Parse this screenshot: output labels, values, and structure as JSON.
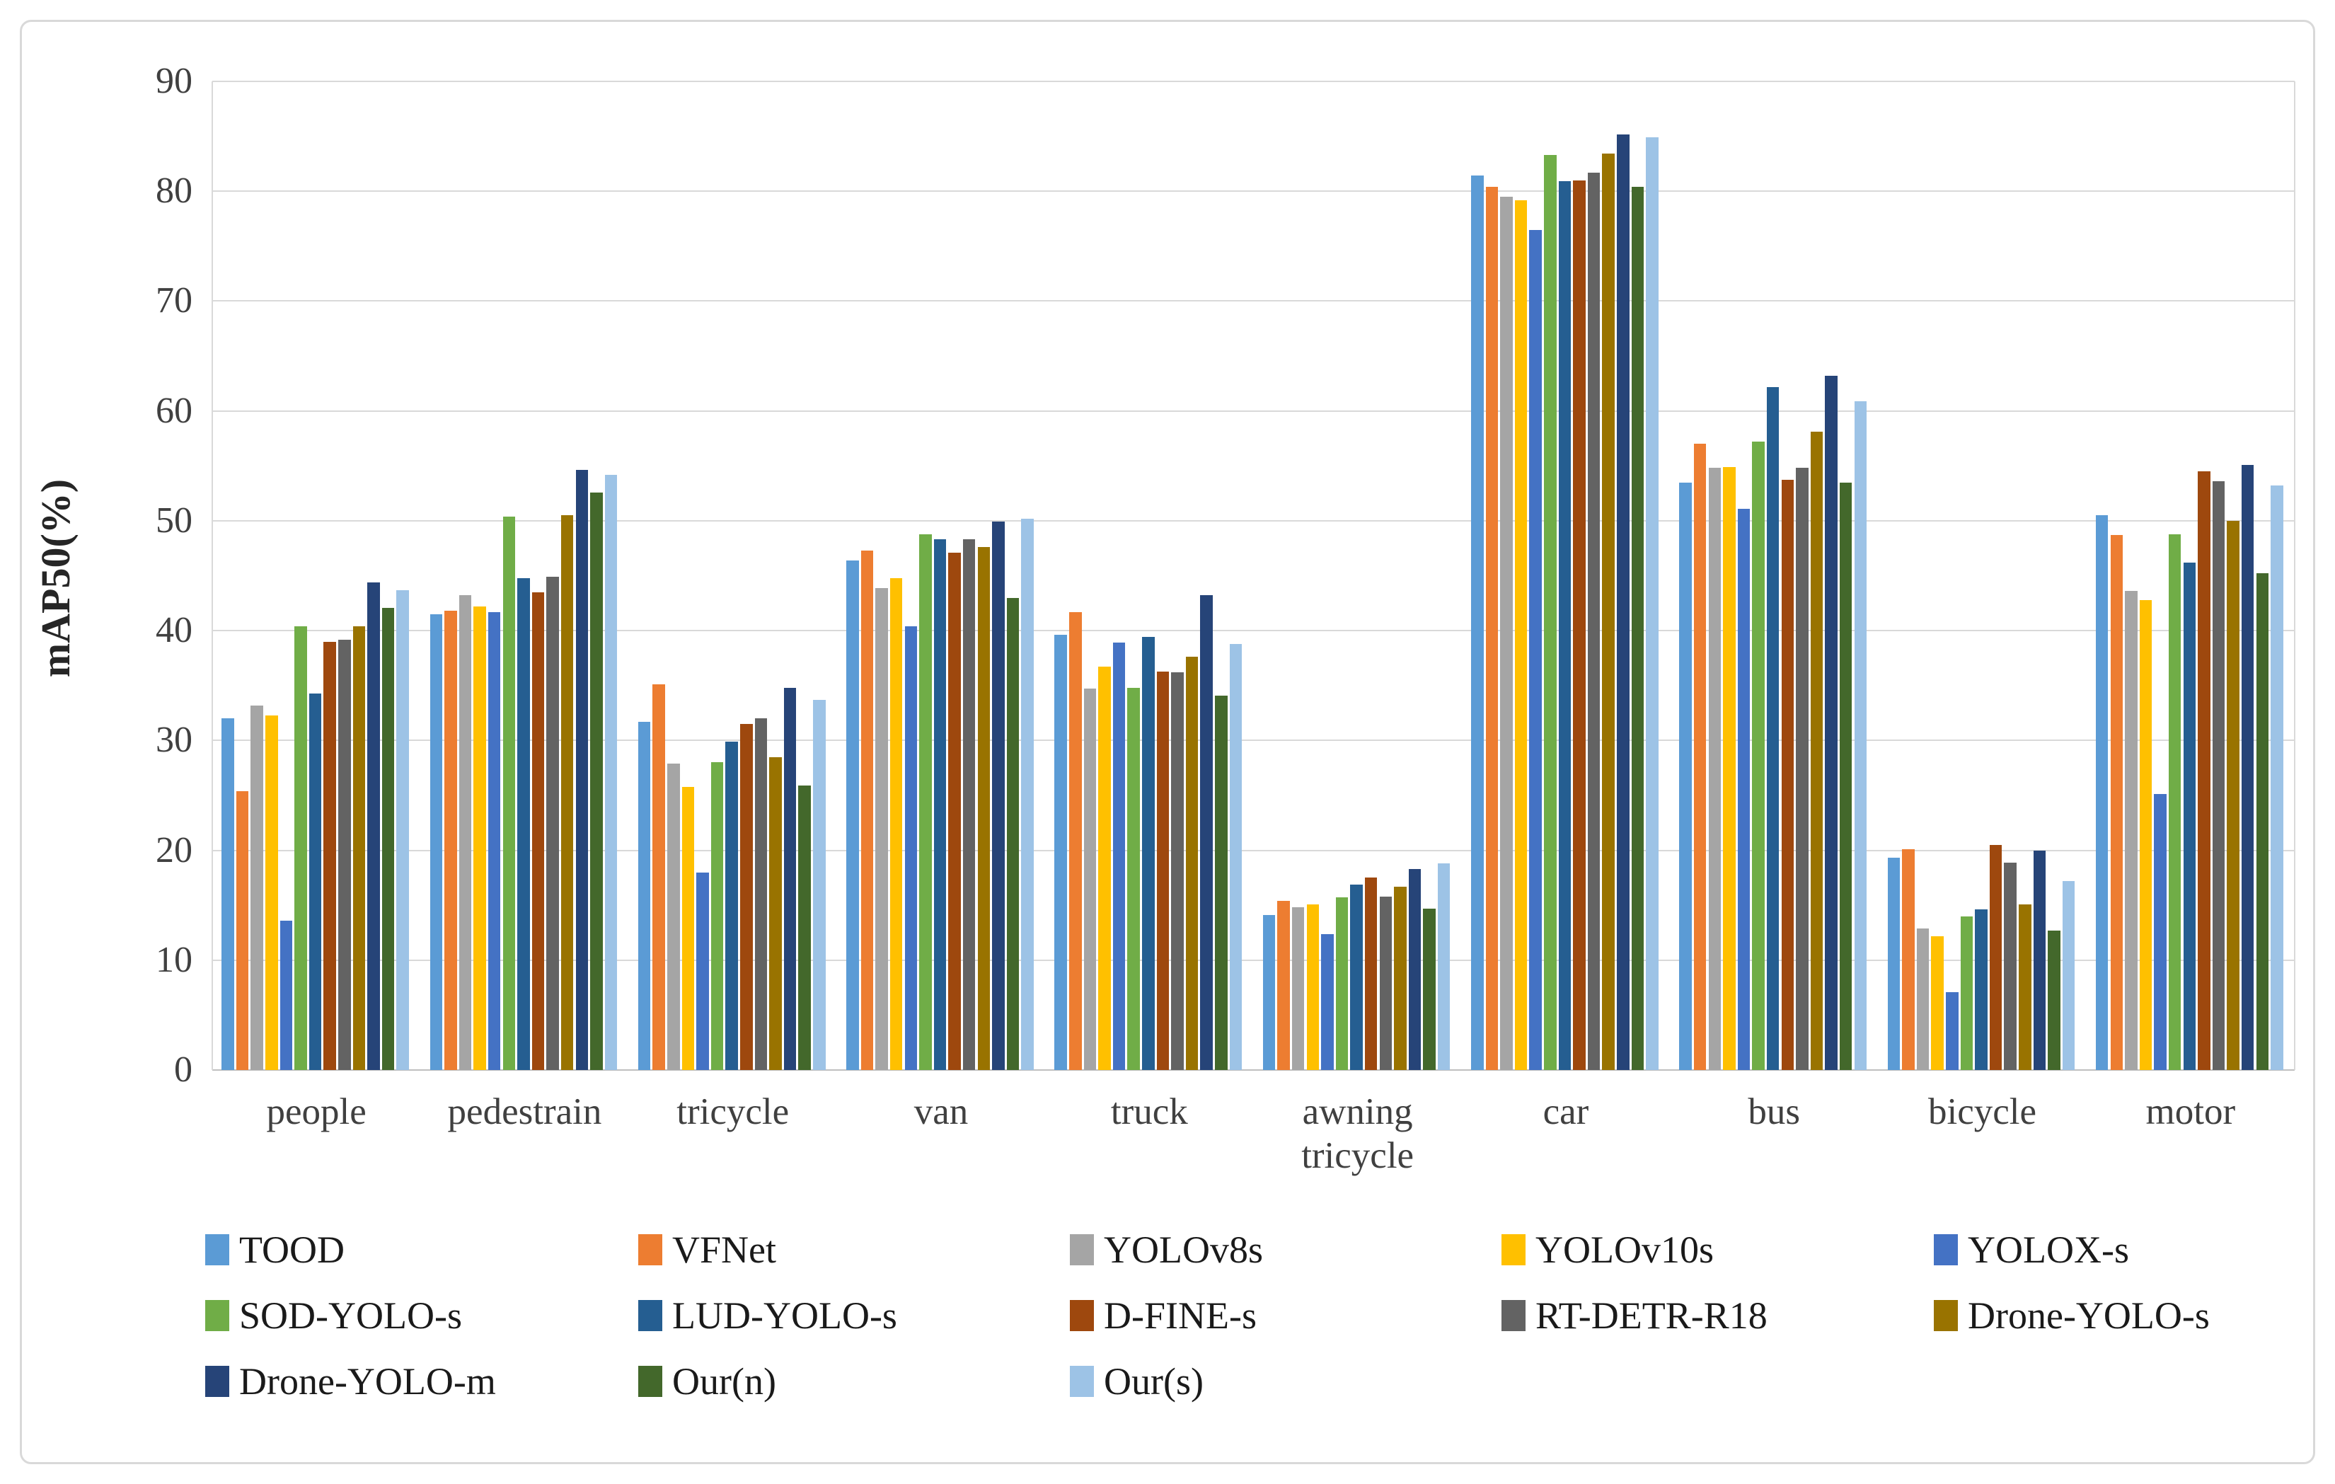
{
  "chart_data": {
    "type": "bar",
    "title": "",
    "xlabel": "",
    "ylabel": "mAP50(%)",
    "ylim": [
      0,
      90
    ],
    "ytick_step": 10,
    "y_ticks": [
      0,
      10,
      20,
      30,
      40,
      50,
      60,
      70,
      80,
      90
    ],
    "grid": true,
    "legend_position": "bottom",
    "categories": [
      "people",
      "pedestrain",
      "tricycle",
      "van",
      "truck",
      "awning tricycle",
      "car",
      "bus",
      "bicycle",
      "motor"
    ],
    "series": [
      {
        "name": "TOOD",
        "color": "#5B9BD5",
        "values": [
          32.0,
          41.5,
          31.7,
          46.4,
          39.6,
          14.1,
          81.4,
          53.5,
          19.3,
          50.5
        ]
      },
      {
        "name": "VFNet",
        "color": "#ED7D31",
        "values": [
          25.4,
          41.8,
          35.1,
          47.3,
          41.7,
          15.4,
          80.4,
          57.0,
          20.1,
          48.7
        ]
      },
      {
        "name": "YOLOv8s",
        "color": "#A5A5A5",
        "values": [
          33.2,
          43.2,
          27.9,
          43.9,
          34.7,
          14.8,
          79.5,
          54.8,
          12.9,
          43.6
        ]
      },
      {
        "name": "YOLOv10s",
        "color": "#FFC000",
        "values": [
          32.3,
          42.2,
          25.8,
          44.8,
          36.7,
          15.1,
          79.2,
          54.9,
          12.2,
          42.8
        ]
      },
      {
        "name": "YOLOX-s",
        "color": "#4472C4",
        "values": [
          13.6,
          41.7,
          18.0,
          40.4,
          38.9,
          12.4,
          76.5,
          51.1,
          7.1,
          25.1
        ]
      },
      {
        "name": "SOD-YOLO-s",
        "color": "#70AD47",
        "values": [
          40.4,
          50.4,
          28.0,
          48.8,
          34.8,
          15.7,
          83.3,
          57.2,
          14.0,
          48.8
        ]
      },
      {
        "name": "LUD-YOLO-s",
        "color": "#255E91",
        "values": [
          34.3,
          44.8,
          29.9,
          48.3,
          39.4,
          16.9,
          80.9,
          62.2,
          14.6,
          46.2
        ]
      },
      {
        "name": "D-FINE-s",
        "color": "#9E480E",
        "values": [
          39.0,
          43.5,
          31.5,
          47.1,
          36.3,
          17.5,
          81.0,
          53.7,
          20.5,
          54.5
        ]
      },
      {
        "name": "RT-DETR-R18",
        "color": "#636363",
        "values": [
          39.2,
          44.9,
          32.0,
          48.3,
          36.2,
          15.8,
          81.7,
          54.8,
          18.9,
          53.6
        ]
      },
      {
        "name": "Drone-YOLO-s",
        "color": "#997300",
        "values": [
          40.4,
          50.5,
          28.5,
          47.6,
          37.6,
          16.7,
          83.4,
          58.1,
          15.1,
          50.0
        ]
      },
      {
        "name": "Drone-YOLO-m",
        "color": "#264478",
        "values": [
          44.4,
          54.6,
          34.8,
          49.9,
          43.2,
          18.3,
          85.2,
          63.2,
          20.0,
          55.1
        ]
      },
      {
        "name": "Our(n)",
        "color": "#43682B",
        "values": [
          42.1,
          52.6,
          25.9,
          43.0,
          34.1,
          14.7,
          80.4,
          53.5,
          12.7,
          45.2
        ]
      },
      {
        "name": "Our(s)",
        "color": "#9DC3E6",
        "values": [
          43.7,
          54.2,
          33.7,
          50.2,
          38.8,
          18.8,
          84.9,
          60.9,
          17.2,
          53.2
        ]
      }
    ]
  },
  "layout_colors": {
    "gridline": "#D9D9D9",
    "axis_line": "#BFBFBF",
    "background": "#FFFFFF",
    "frame_border": "#D9D9D9"
  }
}
